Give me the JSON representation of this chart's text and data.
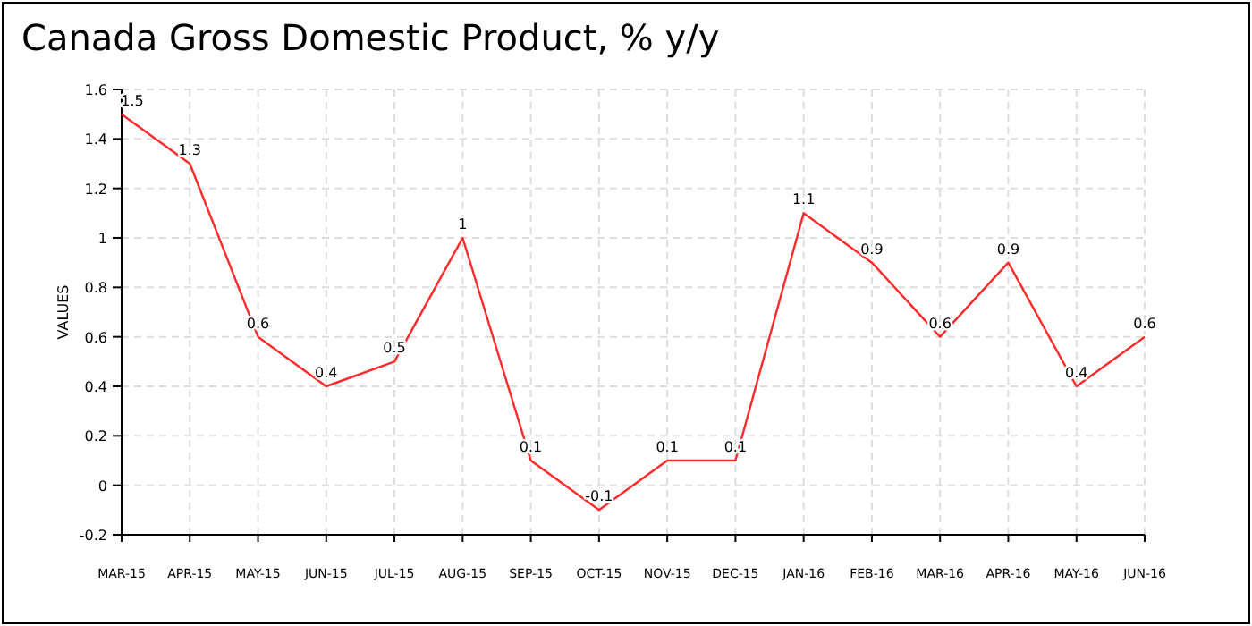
{
  "chart_data": {
    "type": "line",
    "title": "Canada Gross Domestic Product, % y/y",
    "ylabel": "VALUES",
    "categories": [
      "MAR-15",
      "APR-15",
      "MAY-15",
      "JUN-15",
      "JUL-15",
      "AUG-15",
      "SEP-15",
      "OCT-15",
      "NOV-15",
      "DEC-15",
      "JAN-16",
      "FEB-16",
      "MAR-16",
      "APR-16",
      "MAY-16",
      "JUN-16"
    ],
    "series": [
      {
        "color": "#ff2a2a",
        "values": [
          1.5,
          1.3,
          0.6,
          0.4,
          0.5,
          1,
          0.1,
          -0.1,
          0.1,
          0.1,
          1.1,
          0.9,
          0.6,
          0.9,
          0.4,
          0.6
        ]
      }
    ],
    "ylim": [
      -0.2,
      1.6
    ],
    "yticks": [
      -0.2,
      0,
      0.2,
      0.4,
      0.6,
      0.8,
      1,
      1.2,
      1.4,
      1.6
    ],
    "grid": true,
    "data_labels": true,
    "marker": "none",
    "line_style": "solid"
  }
}
